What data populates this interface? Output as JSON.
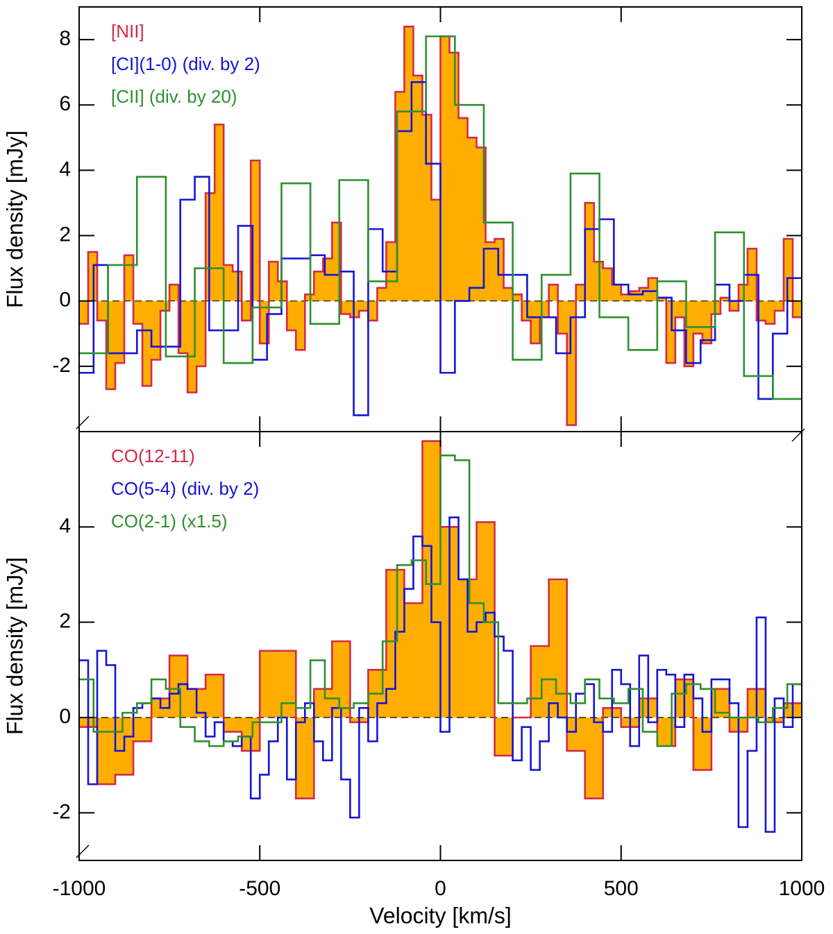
{
  "chart_data": [
    {
      "type": "step",
      "ylabel": "Flux density [mJy]",
      "xlim": [
        -1000,
        1000
      ],
      "xticks": [
        -1000,
        -500,
        0,
        500,
        1000
      ],
      "ylim": [
        -4,
        9
      ],
      "yticks": [
        -2,
        0,
        2,
        4,
        6,
        8
      ],
      "series": [
        {
          "name": "[NII]",
          "color": "#d42a4a",
          "fill": "#ffae00",
          "bins": [
            -1000,
            -975,
            -950,
            -925,
            -900,
            -875,
            -850,
            -825,
            -800,
            -775,
            -750,
            -725,
            -700,
            -675,
            -650,
            -625,
            -600,
            -575,
            -550,
            -525,
            -500,
            -475,
            -450,
            -425,
            -400,
            -375,
            -350,
            -325,
            -300,
            -275,
            -250,
            -225,
            -200,
            -175,
            -150,
            -125,
            -100,
            -75,
            -50,
            -25,
            0,
            25,
            50,
            75,
            100,
            125,
            150,
            175,
            200,
            225,
            250,
            275,
            300,
            325,
            350,
            375,
            400,
            425,
            450,
            475,
            500,
            525,
            550,
            575,
            600,
            625,
            650,
            675,
            700,
            725,
            750,
            775,
            800,
            825,
            850,
            875,
            900,
            925,
            950,
            975,
            1000
          ],
          "values": [
            -0.7,
            1.5,
            -0.6,
            -2.7,
            -1.9,
            1.4,
            -0.7,
            -2.6,
            -1.8,
            -0.3,
            0.5,
            -1.6,
            -2.8,
            -2.0,
            3.3,
            5.4,
            1.1,
            0.9,
            -0.6,
            4.3,
            -1.3,
            1.2,
            0.6,
            -0.9,
            -1.5,
            0.2,
            0.9,
            1.3,
            2.4,
            -0.4,
            -0.5,
            -0.3,
            -0.6,
            0.4,
            1.8,
            6.4,
            8.4,
            6.9,
            5.7,
            3.1,
            8.1,
            7.6,
            5.6,
            5.0,
            4.7,
            1.8,
            1.9,
            0.4,
            0.2,
            -0.6,
            -1.3,
            -0.5,
            0.5,
            -1.0,
            -3.8,
            0.5,
            3.0,
            1.2,
            1.0,
            0.5,
            0.2,
            0.3,
            0.4,
            0.7,
            0.1,
            -1.9,
            -0.5,
            -2.0,
            -1.0,
            -1.3,
            -0.4,
            0.1,
            -0.3,
            0.5,
            1.6,
            -0.6,
            -0.7,
            -0.3,
            1.9,
            -0.5
          ]
        },
        {
          "name": "[CI](1-0) (div. by 2)",
          "color": "#1414d8",
          "bins": [
            -1000,
            -960,
            -920,
            -880,
            -840,
            -800,
            -760,
            -720,
            -680,
            -640,
            -600,
            -560,
            -520,
            -480,
            -440,
            -400,
            -360,
            -320,
            -280,
            -240,
            -200,
            -160,
            -120,
            -80,
            -40,
            0,
            40,
            80,
            120,
            160,
            200,
            240,
            280,
            320,
            360,
            400,
            440,
            480,
            520,
            560,
            600,
            640,
            680,
            720,
            760,
            800,
            840,
            880,
            920,
            960,
            1000
          ],
          "values": [
            -2.2,
            1.1,
            -1.6,
            -1.6,
            -0.9,
            -1.4,
            -1.4,
            3.1,
            3.8,
            -0.9,
            -0.9,
            2.3,
            -1.8,
            -0.4,
            1.3,
            1.3,
            1.4,
            0.8,
            0.9,
            -3.5,
            2.2,
            0.9,
            5.2,
            6.7,
            4.2,
            -2.2,
            0.0,
            0.4,
            1.6,
            0.8,
            0.8,
            -0.5,
            -0.5,
            -1.6,
            -0.5,
            2.2,
            2.5,
            0.5,
            0.2,
            0.3,
            0.1,
            -0.9,
            -1.9,
            -1.2,
            0.5,
            0.0,
            0.8,
            -3.0,
            -1.0,
            0.7
          ]
        },
        {
          "name": "[CII] (div. by 20)",
          "color": "#2f8f2f",
          "bins": [
            -1000,
            -920,
            -840,
            -760,
            -680,
            -600,
            -520,
            -440,
            -360,
            -280,
            -200,
            -120,
            -40,
            40,
            120,
            200,
            280,
            360,
            440,
            520,
            600,
            680,
            760,
            840,
            920,
            1000
          ],
          "values": [
            -1.6,
            1.1,
            3.8,
            -1.7,
            1.0,
            -1.9,
            -0.2,
            3.6,
            -0.7,
            3.7,
            0.6,
            5.8,
            8.1,
            6.0,
            2.4,
            -1.8,
            0.8,
            3.9,
            -0.5,
            -1.5,
            0.6,
            -0.8,
            2.1,
            -2.3,
            -3.0
          ]
        }
      ]
    },
    {
      "type": "step",
      "ylabel": "Flux density [mJy]",
      "xlabel": "Velocity [km/s]",
      "xlim": [
        -1000,
        1000
      ],
      "xticks": [
        -1000,
        -500,
        0,
        500,
        1000
      ],
      "ylim": [
        -3,
        6
      ],
      "yticks": [
        -2,
        0,
        2,
        4
      ],
      "series": [
        {
          "name": "CO(12-11)",
          "color": "#d42a4a",
          "fill": "#ffae00",
          "bins": [
            -1000,
            -950,
            -900,
            -850,
            -800,
            -750,
            -700,
            -650,
            -600,
            -550,
            -500,
            -450,
            -400,
            -350,
            -300,
            -250,
            -200,
            -150,
            -100,
            -50,
            0,
            50,
            100,
            150,
            200,
            250,
            300,
            350,
            400,
            450,
            500,
            550,
            600,
            650,
            700,
            750,
            800,
            850,
            900,
            950,
            1000
          ],
          "values": [
            -0.2,
            -1.4,
            -1.2,
            -0.5,
            0.4,
            1.3,
            0.6,
            0.9,
            -0.3,
            -0.7,
            1.4,
            1.4,
            -1.7,
            0.6,
            1.6,
            -0.1,
            1.0,
            3.1,
            2.4,
            5.8,
            4.0,
            2.9,
            4.1,
            -0.8,
            0.0,
            1.5,
            2.9,
            -0.7,
            -1.7,
            0.2,
            -0.2,
            0.4,
            -0.6,
            0.8,
            -1.1,
            0.6,
            -0.3,
            0.6,
            -0.1,
            0.3
          ]
        },
        {
          "name": "CO(5-4) (div. by 2)",
          "color": "#1414d8",
          "bins": [
            -1000,
            -975,
            -950,
            -925,
            -900,
            -875,
            -850,
            -825,
            -800,
            -775,
            -750,
            -725,
            -700,
            -675,
            -650,
            -625,
            -600,
            -575,
            -550,
            -525,
            -500,
            -475,
            -450,
            -425,
            -400,
            -375,
            -350,
            -325,
            -300,
            -275,
            -250,
            -225,
            -200,
            -175,
            -150,
            -125,
            -100,
            -75,
            -50,
            -25,
            0,
            25,
            50,
            75,
            100,
            125,
            150,
            175,
            200,
            225,
            250,
            275,
            300,
            325,
            350,
            375,
            400,
            425,
            450,
            475,
            500,
            525,
            550,
            575,
            600,
            625,
            650,
            675,
            700,
            725,
            750,
            775,
            800,
            825,
            850,
            875,
            900,
            925,
            950,
            975,
            1000
          ],
          "values": [
            1.2,
            -1.4,
            1.4,
            1.1,
            -0.7,
            -0.4,
            0.2,
            0.3,
            0.4,
            0.2,
            0.5,
            0.7,
            0.6,
            0.1,
            -0.4,
            -0.1,
            -0.5,
            -0.6,
            -0.4,
            -1.7,
            -1.2,
            -0.5,
            0.0,
            -1.3,
            -0.1,
            0.3,
            -0.5,
            -0.9,
            0.2,
            -1.3,
            -2.1,
            0.2,
            -0.5,
            0.3,
            0.6,
            1.8,
            2.7,
            3.8,
            3.6,
            2.0,
            -0.3,
            4.2,
            2.9,
            1.8,
            2.0,
            2.2,
            1.7,
            1.4,
            -0.9,
            -0.2,
            -1.1,
            -0.5,
            0.3,
            0.0,
            -0.3,
            0.5,
            0.7,
            -0.1,
            -0.3,
            1.0,
            0.7,
            -0.6,
            1.3,
            -0.1,
            1.0,
            0.9,
            -0.2,
            0.9,
            0.4,
            -0.3,
            0.8,
            0.8,
            0.3,
            -2.3,
            -0.7,
            2.1,
            -2.4,
            0.4,
            -0.2,
            0.7
          ]
        },
        {
          "name": "CO(2-1) (x1.5)",
          "color": "#2f8f2f",
          "bins": [
            -1000,
            -960,
            -920,
            -880,
            -840,
            -800,
            -760,
            -720,
            -680,
            -640,
            -600,
            -560,
            -520,
            -480,
            -440,
            -400,
            -360,
            -320,
            -280,
            -240,
            -200,
            -160,
            -120,
            -80,
            -40,
            0,
            40,
            80,
            120,
            160,
            200,
            240,
            280,
            320,
            360,
            400,
            440,
            480,
            520,
            560,
            600,
            640,
            680,
            720,
            760,
            800,
            840,
            880,
            920,
            960,
            1000
          ],
          "values": [
            0.8,
            -0.3,
            -0.3,
            0.1,
            0.3,
            0.8,
            0.6,
            -0.2,
            -0.5,
            -0.6,
            -0.5,
            -0.4,
            -0.1,
            -0.1,
            0.3,
            0.2,
            1.2,
            0.4,
            0.2,
            0.3,
            0.5,
            1.6,
            3.2,
            3.3,
            2.8,
            5.5,
            5.4,
            2.4,
            2.0,
            0.3,
            0.3,
            0.4,
            0.8,
            0.5,
            0.3,
            0.8,
            0.4,
            0.3,
            0.6,
            -0.3,
            -0.6,
            0.5,
            0.7,
            0.6,
            0.1,
            0.0,
            0.0,
            -0.1,
            0.2,
            0.7
          ]
        }
      ]
    }
  ]
}
